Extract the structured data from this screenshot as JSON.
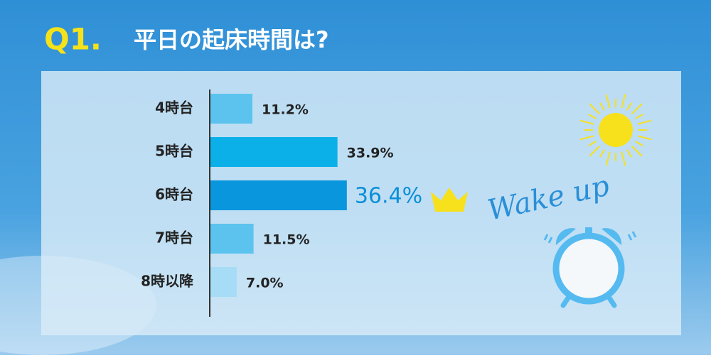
{
  "chart_data": {
    "type": "bar",
    "orientation": "horizontal",
    "question": "Q1.",
    "title": "平日の起床時間は?",
    "categories": [
      "4時台",
      "5時台",
      "6時台",
      "7時台",
      "8時以降"
    ],
    "values": [
      11.2,
      33.9,
      36.4,
      11.5,
      7.0
    ],
    "value_labels": [
      "11.2%",
      "33.9%",
      "36.4%",
      "11.5%",
      "7.0%"
    ],
    "colors": [
      "#5cc3ee",
      "#0cb0e8",
      "#0a96dd",
      "#5cc3ee",
      "#a6dcf5"
    ],
    "annotation": "Wake up"
  }
}
